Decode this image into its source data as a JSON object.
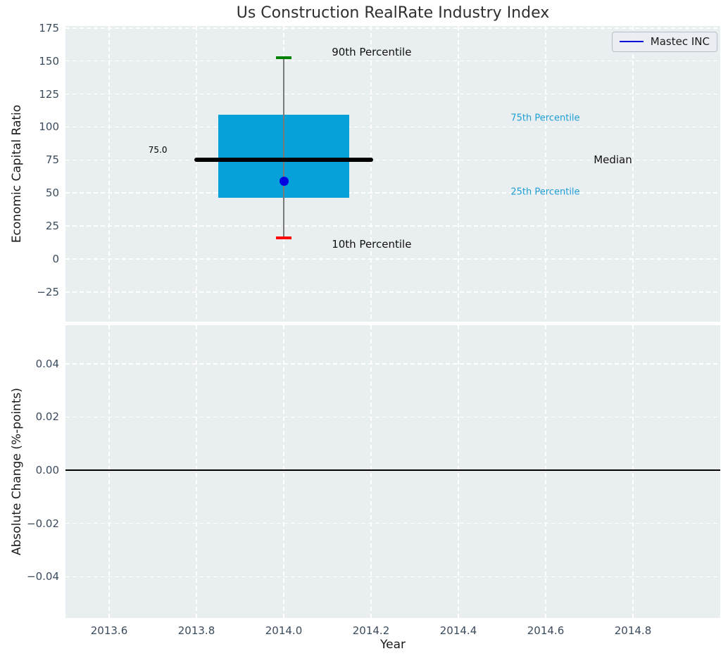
{
  "figure": {
    "colors": {
      "background": "#ffffff",
      "axes_background": "#e9eef1",
      "grid": "#ffffff",
      "tick_label": "#3a4b5c",
      "axis_label": "#1a1a1a",
      "title": "#2f2f2f"
    }
  },
  "chart_data": [
    {
      "type": "boxplot",
      "title": "Us Construction RealRate Industry Index",
      "ylabel": "Economic Capital Ratio",
      "xlabel": "",
      "grid": true,
      "xlim": [
        2013.5,
        2015.0
      ],
      "ylim": [
        -47.5,
        176.5
      ],
      "xticks": [
        {
          "v": 2013.6,
          "label": "2013.6"
        },
        {
          "v": 2013.8,
          "label": "2013.8"
        },
        {
          "v": 2014.0,
          "label": "2014.0"
        },
        {
          "v": 2014.2,
          "label": "2014.2"
        },
        {
          "v": 2014.4,
          "label": "2014.4"
        },
        {
          "v": 2014.6,
          "label": "2014.6"
        },
        {
          "v": 2014.8,
          "label": "2014.8"
        }
      ],
      "yticks": [
        {
          "v": 175,
          "label": "175"
        },
        {
          "v": 150,
          "label": "150"
        },
        {
          "v": 125,
          "label": "125"
        },
        {
          "v": 100,
          "label": "100"
        },
        {
          "v": 75,
          "label": "75"
        },
        {
          "v": 50,
          "label": "50"
        },
        {
          "v": 25,
          "label": "25"
        },
        {
          "v": 0,
          "label": "0"
        },
        {
          "v": -25,
          "label": "−25"
        }
      ],
      "box": {
        "x": 2014.0,
        "p10": 16,
        "p25": 46.5,
        "median": 75.0,
        "p75": 109.5,
        "p90": 152.5,
        "box_half_width": 0.15,
        "median_half_width": 0.205,
        "cap_half_width": 0.0175,
        "colors": {
          "box": "#06a1d8",
          "median": "#000000",
          "whisker": "#7a7a7a",
          "cap_top": "#008000",
          "cap_bottom": "#ff0000"
        }
      },
      "point": {
        "label": "Mastec INC",
        "x": 2014.0,
        "y": 59,
        "color": "#0000e0"
      },
      "legend": {
        "label": "Mastec INC",
        "line_color": "#0000dd",
        "position": "upper right"
      },
      "annotations": [
        {
          "text": "90th Percentile",
          "x": 2014.11,
          "y": 157,
          "color": "#111111",
          "size": 15
        },
        {
          "text": "10th Percentile",
          "x": 2014.11,
          "y": 11,
          "color": "#111111",
          "size": 15
        },
        {
          "text": "75th Percentile",
          "x": 2014.52,
          "y": 106.5,
          "color": "#1f9fd4",
          "size": 13
        },
        {
          "text": "25th Percentile",
          "x": 2014.52,
          "y": 50.5,
          "color": "#1f9fd4",
          "size": 13
        },
        {
          "text": "Median",
          "x": 2014.71,
          "y": 75,
          "color": "#111111",
          "size": 15
        },
        {
          "text": "75.0",
          "x": 2013.69,
          "y": 82.5,
          "color": "#000000",
          "size": 12
        }
      ]
    },
    {
      "type": "line",
      "title": "",
      "ylabel": "Absolute Change (%-points)",
      "xlabel": "Year",
      "grid": true,
      "xlim": [
        2013.5,
        2015.0
      ],
      "ylim": [
        -0.0555,
        0.0545
      ],
      "xticks": [
        {
          "v": 2013.6,
          "label": "2013.6"
        },
        {
          "v": 2013.8,
          "label": "2013.8"
        },
        {
          "v": 2014.0,
          "label": "2014.0"
        },
        {
          "v": 2014.2,
          "label": "2014.2"
        },
        {
          "v": 2014.4,
          "label": "2014.4"
        },
        {
          "v": 2014.6,
          "label": "2014.6"
        },
        {
          "v": 2014.8,
          "label": "2014.8"
        }
      ],
      "yticks": [
        {
          "v": 0.04,
          "label": "0.04"
        },
        {
          "v": 0.02,
          "label": "0.02"
        },
        {
          "v": 0.0,
          "label": "0.00"
        },
        {
          "v": -0.02,
          "label": "−0.02"
        },
        {
          "v": -0.04,
          "label": "−0.04"
        }
      ],
      "zero_line": {
        "y": 0.0,
        "color": "#000000"
      },
      "series": []
    }
  ]
}
